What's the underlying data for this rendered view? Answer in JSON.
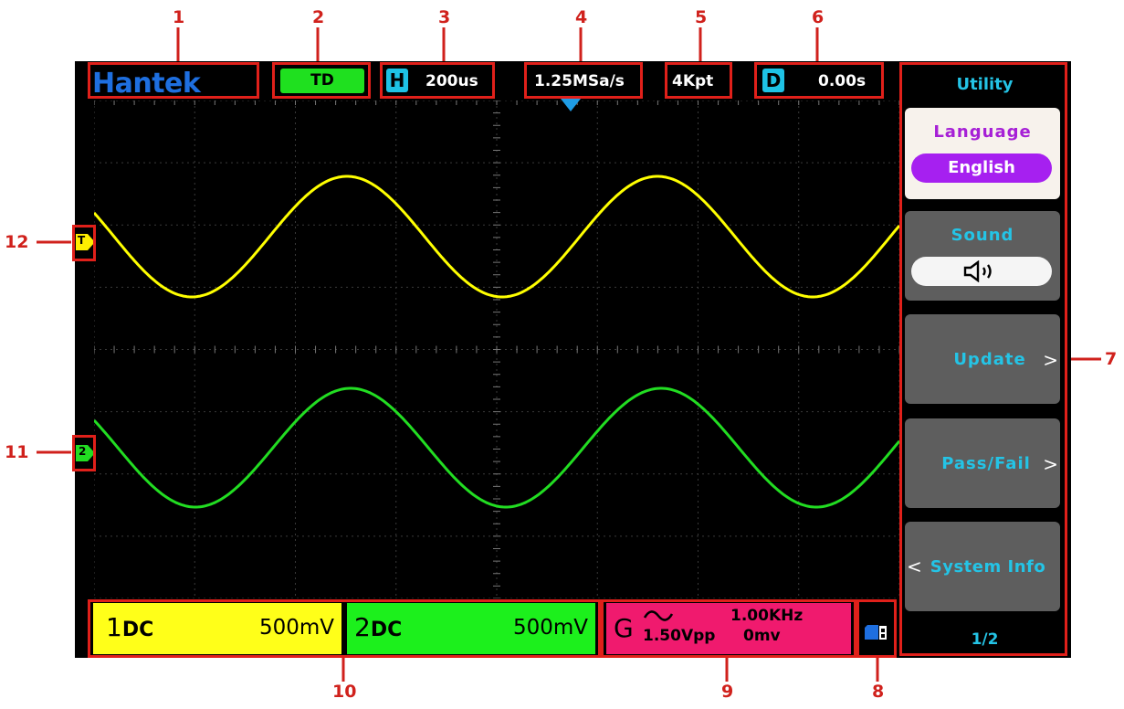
{
  "callouts": [
    "1",
    "2",
    "3",
    "4",
    "5",
    "6",
    "7",
    "8",
    "9",
    "10",
    "11",
    "12"
  ],
  "header": {
    "logo": "Hantek",
    "trigger_mode": "TD",
    "timebase_letter": "H",
    "timebase": "200us",
    "sample_rate": "1.25MSa/s",
    "memory_depth": "4Kpt",
    "delay_letter": "D",
    "delay": "0.00s"
  },
  "sidebar": {
    "title": "Utility",
    "items": [
      {
        "label": "Language",
        "value": "English"
      },
      {
        "label": "Sound",
        "value": "speaker-icon"
      },
      {
        "label": "Update",
        "arrow": ">"
      },
      {
        "label": "Pass/Fail",
        "arrow": ">"
      },
      {
        "label": "System Info",
        "arrow": "<"
      }
    ],
    "page": "1/2"
  },
  "channels": [
    {
      "num": "1",
      "coupling": "DC",
      "scale": "500mV",
      "color": "#ffff19"
    },
    {
      "num": "2",
      "coupling": "DC",
      "scale": "500mV",
      "color": "#1cf01c"
    }
  ],
  "generator": {
    "letter": "G",
    "wave": "sine-wave-icon",
    "frequency": "1.00KHz",
    "amplitude": "1.50Vpp",
    "offset": "0mv",
    "color": "#f01a6e"
  },
  "markers": {
    "trigger": "T",
    "channel2": "2"
  },
  "colors": {
    "ch1_trace": "#ffff00",
    "ch2_trace": "#22dd22",
    "accent": "#24c4e6",
    "highlight": "#a020f0"
  }
}
